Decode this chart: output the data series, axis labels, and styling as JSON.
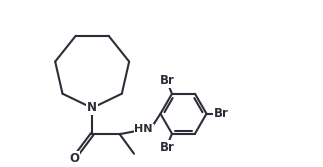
{
  "bg_color": "#ffffff",
  "line_color": "#2d2d3a",
  "br_color": "#2d2d3a",
  "line_width": 1.5,
  "fig_width": 3.23,
  "fig_height": 1.67,
  "dpi": 100,
  "xlim": [
    0.0,
    10.5
  ],
  "ylim": [
    1.5,
    7.8
  ]
}
